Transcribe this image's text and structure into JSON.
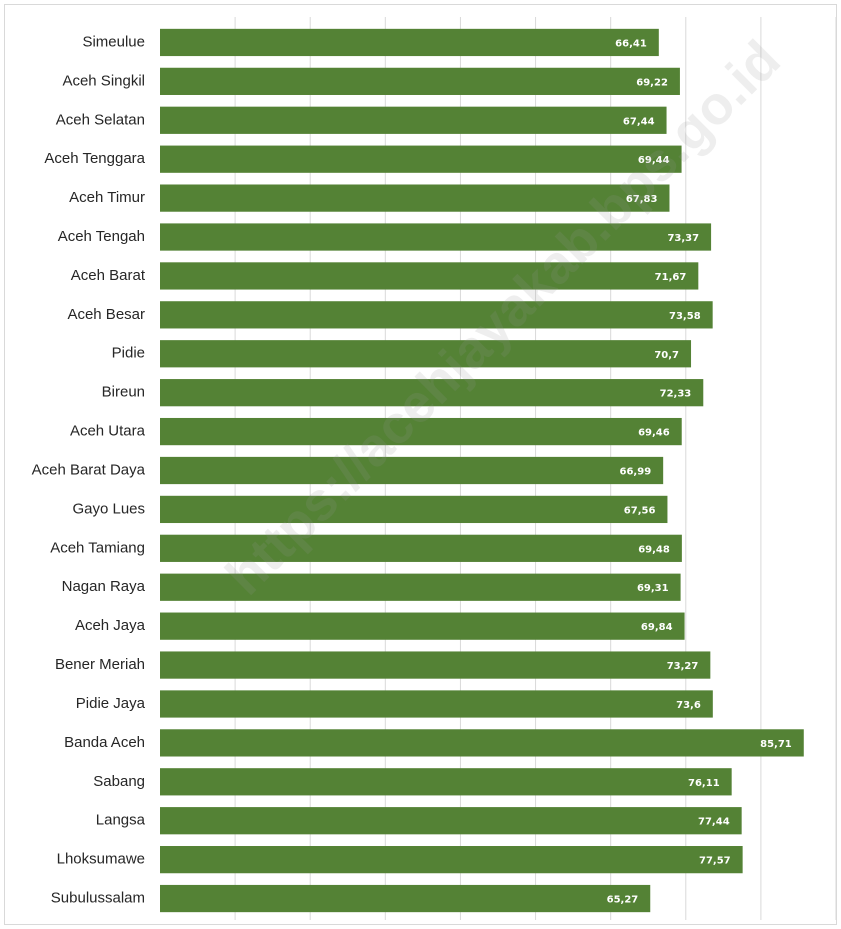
{
  "chart_data": {
    "type": "bar",
    "orientation": "horizontal",
    "categories": [
      "Simeulue",
      "Aceh Singkil",
      "Aceh Selatan",
      "Aceh Tenggara",
      "Aceh Timur",
      "Aceh Tengah",
      "Aceh Barat",
      "Aceh Besar",
      "Pidie",
      "Bireun",
      "Aceh Utara",
      "Aceh Barat Daya",
      "Gayo Lues",
      "Aceh Tamiang",
      "Nagan Raya",
      "Aceh Jaya",
      "Bener Meriah",
      "Pidie Jaya",
      "Banda Aceh",
      "Sabang",
      "Langsa",
      "Lhoksumawe",
      "Subulussalam"
    ],
    "values": [
      66.41,
      69.22,
      67.44,
      69.44,
      67.83,
      73.37,
      71.67,
      73.58,
      70.7,
      72.33,
      69.46,
      66.99,
      67.56,
      69.48,
      69.31,
      69.84,
      73.27,
      73.6,
      85.71,
      76.11,
      77.44,
      77.57,
      65.27
    ],
    "value_labels": [
      "66,41",
      "69,22",
      "67,44",
      "69,44",
      "67,83",
      "73,37",
      "71,67",
      "73,58",
      "70,7",
      "72,33",
      "69,46",
      "66,99",
      "67,56",
      "69,48",
      "69,31",
      "69,84",
      "73,27",
      "73,6",
      "85,71",
      "76,11",
      "77,44",
      "77,57",
      "65,27"
    ],
    "xlim": [
      0,
      90
    ],
    "grid": true,
    "colors": {
      "bar": "#548235",
      "grid": "#d9d9d9"
    }
  },
  "watermark": "https://acehjayakab.bps.go.id"
}
